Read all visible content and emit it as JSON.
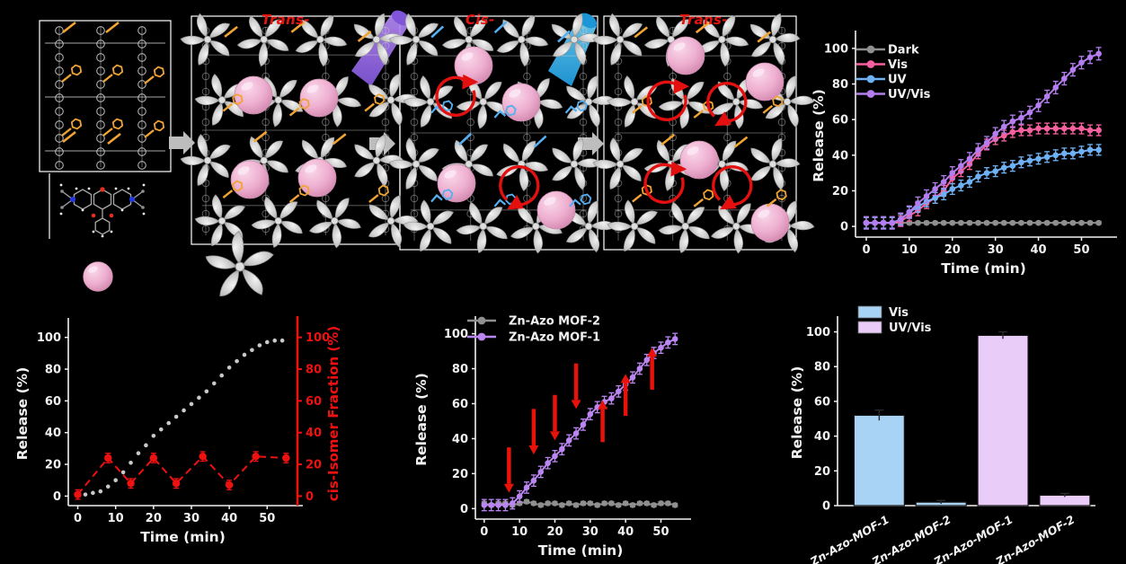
{
  "figure": {
    "background": "#000000",
    "description": "Light-driven Zn-Azo MOF cargo release figure"
  },
  "schematic": {
    "stage_labels": [
      {
        "text": "Trans-"
      },
      {
        "text": "Cis-"
      },
      {
        "text": "Trans-"
      }
    ],
    "label_color": "#e8150f",
    "icons": {
      "guest_molecule": "pink-sphere-icon",
      "molecular_rotor": "gray-pinwheel-icon",
      "uv_light": "purple-beam-icon",
      "vis_light": "blue-beam-icon",
      "process_step": "gray-block-arrow-icon",
      "rotation": "red-rotation-arrow-icon"
    },
    "colors": {
      "framework": "#cfcfcf",
      "rotor": "#c9c9c9",
      "guest_sphere": "#eeafd0",
      "azo_trans_pendant": "#f1a433",
      "azo_cis_pendant": "#55aff0",
      "uv_beam": "#9b6fe8",
      "vis_beam": "#35b5e8",
      "rotation_arrow": "#e41010"
    }
  },
  "chart_data": [
    {
      "id": "release-light-conditions",
      "type": "line",
      "title": "",
      "xlabel": "Time (min)",
      "ylabel": "Release (%)",
      "xlim": [
        -2.5,
        57
      ],
      "ylim": [
        -6,
        108
      ],
      "xticks": [
        0,
        10,
        20,
        30,
        40,
        50
      ],
      "yticks": [
        0,
        20,
        40,
        60,
        80,
        100
      ],
      "legend_position": "upper-left",
      "x": [
        0,
        2,
        4,
        6,
        8,
        10,
        12,
        14,
        16,
        18,
        20,
        22,
        24,
        26,
        28,
        30,
        32,
        34,
        36,
        38,
        40,
        42,
        44,
        46,
        48,
        50,
        52,
        54
      ],
      "series": [
        {
          "name": "Dark",
          "color": "#8f8f8f",
          "err": 0.8,
          "values": [
            2,
            2,
            2,
            2,
            2,
            2,
            2,
            2,
            2,
            2,
            2,
            2,
            2,
            2,
            2,
            2,
            2,
            2,
            2,
            2,
            2,
            2,
            2,
            2,
            2,
            2,
            2,
            2
          ]
        },
        {
          "name": "Vis",
          "color": "#f7609f",
          "err": 3,
          "values": [
            2,
            2,
            2,
            2,
            3,
            6,
            9,
            13,
            16,
            20,
            27,
            31,
            35,
            41,
            46,
            49,
            51,
            53,
            54,
            54,
            55,
            55,
            55,
            55,
            55,
            55,
            54,
            54
          ]
        },
        {
          "name": "UV",
          "color": "#6fb1f5",
          "err": 3,
          "values": [
            2,
            2,
            2,
            2,
            4,
            8,
            11,
            14,
            16,
            18,
            21,
            23,
            25,
            28,
            30,
            31,
            33,
            34,
            36,
            37,
            38,
            39,
            40,
            41,
            41,
            42,
            43,
            43
          ]
        },
        {
          "name": "UV/Vis",
          "color": "#b47ef0",
          "err": 3.5,
          "values": [
            2,
            2,
            2,
            2,
            4,
            8,
            13,
            17,
            21,
            25,
            30,
            34,
            38,
            43,
            47,
            52,
            56,
            59,
            61,
            64,
            68,
            73,
            78,
            83,
            88,
            92,
            95,
            97
          ]
        }
      ]
    },
    {
      "id": "release-vs-cis-fraction",
      "type": "line-dual",
      "title": "",
      "xlabel": "Time (min)",
      "ylabel": "Release (%)",
      "ylabel_right": "cis-Isomer Fraction (%)",
      "right_axis_color": "#ee1111",
      "xlim": [
        -2.5,
        58
      ],
      "ylim": [
        -6,
        110
      ],
      "xticks": [
        0,
        10,
        20,
        30,
        40,
        50
      ],
      "yticks": [
        0,
        20,
        40,
        60,
        80,
        100
      ],
      "yticks_right": [
        0,
        20,
        40,
        60,
        80,
        100
      ],
      "series": [
        {
          "name": "Release",
          "axis": "left",
          "color": "#c9c9c9",
          "line": "none",
          "marker_r": 2.3,
          "err": 0,
          "x": [
            0,
            2,
            4,
            6,
            8,
            10,
            12,
            14,
            16,
            18,
            20,
            22,
            24,
            26,
            28,
            30,
            32,
            34,
            36,
            38,
            40,
            42,
            44,
            46,
            48,
            50,
            52,
            54
          ],
          "values": [
            0,
            1,
            2,
            3,
            6,
            10,
            15,
            21,
            27,
            32,
            38,
            42,
            46,
            50,
            54,
            58,
            62,
            66,
            71,
            76,
            81,
            85,
            89,
            92,
            95,
            97,
            98,
            98
          ]
        },
        {
          "name": "cis-Isomer Fraction",
          "axis": "right",
          "color": "#ee1111",
          "line": "dashed",
          "marker_r": 4.2,
          "err": 3,
          "x": [
            0,
            8,
            14,
            20,
            26,
            33,
            40,
            47,
            55
          ],
          "values": [
            1,
            24,
            8,
            24,
            8,
            25,
            7,
            25,
            24
          ]
        }
      ]
    },
    {
      "id": "mof-comparison",
      "type": "line",
      "title": "",
      "xlabel": "Time (min)",
      "ylabel": "Release (%)",
      "xlim": [
        -2.5,
        57
      ],
      "ylim": [
        -6,
        108
      ],
      "xticks": [
        0,
        10,
        20,
        30,
        40,
        50
      ],
      "yticks": [
        0,
        20,
        40,
        60,
        80,
        100
      ],
      "legend_position": "upper-left",
      "x": [
        0,
        2,
        4,
        6,
        8,
        10,
        12,
        14,
        16,
        18,
        20,
        22,
        24,
        26,
        28,
        30,
        32,
        34,
        36,
        38,
        40,
        42,
        44,
        46,
        48,
        50,
        52,
        54
      ],
      "series": [
        {
          "name": "Zn-Azo MOF-2",
          "color": "#8f8f8f",
          "err": 1,
          "values": [
            3,
            2,
            3,
            3,
            2,
            3,
            4,
            3,
            2,
            3,
            3,
            2,
            3,
            2,
            3,
            3,
            2,
            3,
            3,
            2,
            3,
            2,
            3,
            3,
            2,
            3,
            3,
            2
          ]
        },
        {
          "name": "Zn-Azo MOF-1",
          "color": "#bb86f2",
          "err": 3.2,
          "values": [
            2,
            2,
            2,
            2,
            3,
            7,
            12,
            16,
            21,
            26,
            30,
            34,
            39,
            43,
            48,
            54,
            58,
            61,
            63,
            67,
            71,
            75,
            80,
            85,
            89,
            92,
            95,
            97
          ]
        }
      ],
      "annotation_color": "#e8120a",
      "annotations": [
        {
          "x": 7,
          "tip": 9,
          "len": 26,
          "dir": "down"
        },
        {
          "x": 14,
          "tip": 31,
          "len": 26,
          "dir": "down"
        },
        {
          "x": 20,
          "tip": 39,
          "len": 26,
          "dir": "down"
        },
        {
          "x": 26,
          "tip": 57,
          "len": 26,
          "dir": "down"
        },
        {
          "x": 33.5,
          "tip": 62,
          "len": 24,
          "dir": "up"
        },
        {
          "x": 40,
          "tip": 77,
          "len": 24,
          "dir": "up"
        },
        {
          "x": 47.5,
          "tip": 92,
          "len": 24,
          "dir": "up"
        }
      ]
    },
    {
      "id": "release-bars",
      "type": "bar",
      "title": "",
      "ylabel": "Release (%)",
      "ylim": [
        0,
        107
      ],
      "yticks": [
        0,
        20,
        40,
        60,
        80,
        100
      ],
      "bars": [
        {
          "category": "Zn-Azo-MOF-1",
          "condition": "Vis",
          "value": 52,
          "err": 3
        },
        {
          "category": "Zn-Azo-MOF-2",
          "condition": "Vis",
          "value": 2,
          "err": 1
        },
        {
          "category": "Zn-Azo-MOF-1",
          "condition": "UV/Vis",
          "value": 98,
          "err": 2
        },
        {
          "category": "Zn-Azo-MOF-2",
          "condition": "UV/Vis",
          "value": 6,
          "err": 1
        }
      ],
      "legend": [
        {
          "label": "Vis",
          "color": "#a9d3f5"
        },
        {
          "label": "UV/Vis",
          "color": "#e9cdf8"
        }
      ]
    }
  ]
}
